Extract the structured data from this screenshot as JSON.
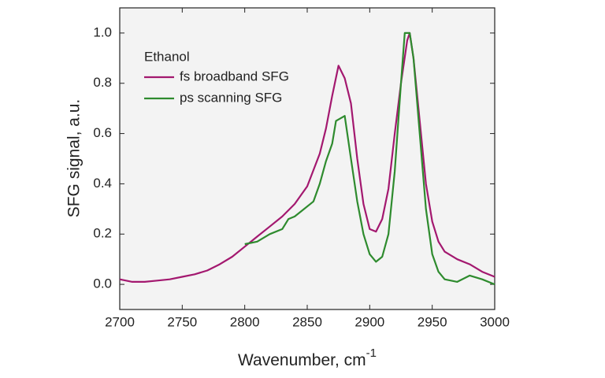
{
  "chart_data": {
    "type": "line",
    "xlabel": "Wavenumber, cm",
    "xlabel_sup": "-1",
    "ylabel": "SFG signal, a.u.",
    "legend_title": "Ethanol",
    "legend": "upper left",
    "xlim": [
      2700,
      3000
    ],
    "xticks": [
      2700,
      2750,
      2800,
      2850,
      2900,
      2950,
      3000
    ],
    "ylim": [
      -0.1,
      1.1
    ],
    "yticks": [
      {
        "value": 0,
        "label": "0.0"
      },
      0.2,
      0.4,
      0.6,
      0.8,
      {
        "value": 1,
        "label": "1.0"
      }
    ],
    "series": [
      {
        "name": "fs broadband SFG",
        "color": "#a3186f",
        "x": [
          2700,
          2710,
          2720,
          2730,
          2740,
          2750,
          2760,
          2770,
          2780,
          2790,
          2800,
          2810,
          2820,
          2830,
          2840,
          2850,
          2860,
          2865,
          2870,
          2875,
          2880,
          2885,
          2890,
          2895,
          2900,
          2905,
          2910,
          2915,
          2920,
          2925,
          2930,
          2932,
          2935,
          2940,
          2945,
          2950,
          2955,
          2960,
          2970,
          2980,
          2990,
          3000
        ],
        "values": [
          0.02,
          0.01,
          0.01,
          0.015,
          0.02,
          0.03,
          0.04,
          0.055,
          0.08,
          0.11,
          0.15,
          0.19,
          0.23,
          0.27,
          0.32,
          0.39,
          0.52,
          0.62,
          0.75,
          0.87,
          0.82,
          0.72,
          0.5,
          0.32,
          0.22,
          0.21,
          0.26,
          0.38,
          0.6,
          0.8,
          0.97,
          1.0,
          0.9,
          0.65,
          0.4,
          0.25,
          0.17,
          0.13,
          0.1,
          0.08,
          0.05,
          0.03
        ]
      },
      {
        "name": "ps scanning SFG",
        "color": "#2e8b2e",
        "x": [
          2800,
          2810,
          2820,
          2830,
          2835,
          2840,
          2845,
          2855,
          2860,
          2865,
          2870,
          2873,
          2880,
          2885,
          2890,
          2895,
          2900,
          2905,
          2910,
          2915,
          2920,
          2925,
          2928,
          2932,
          2935,
          2940,
          2945,
          2950,
          2955,
          2960,
          2970,
          2980,
          2990,
          3000
        ],
        "values": [
          0.16,
          0.17,
          0.2,
          0.22,
          0.26,
          0.27,
          0.29,
          0.33,
          0.4,
          0.49,
          0.56,
          0.65,
          0.67,
          0.5,
          0.33,
          0.2,
          0.12,
          0.09,
          0.11,
          0.2,
          0.45,
          0.8,
          1.0,
          1.0,
          0.9,
          0.6,
          0.3,
          0.12,
          0.05,
          0.02,
          0.01,
          0.035,
          0.02,
          0.0
        ]
      }
    ]
  }
}
